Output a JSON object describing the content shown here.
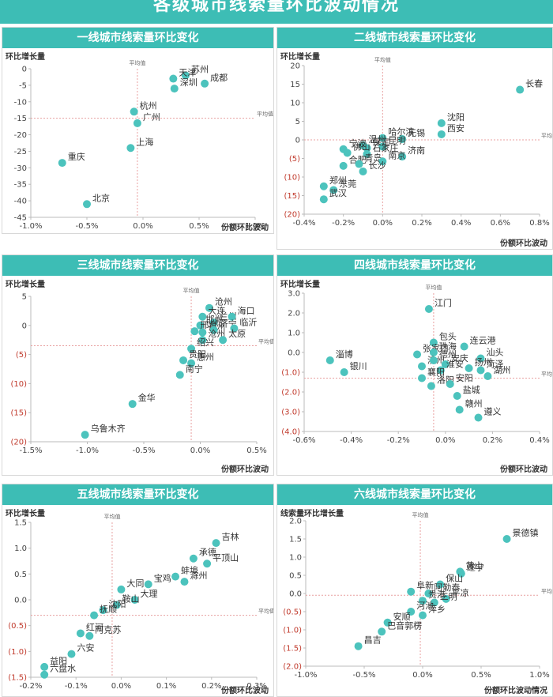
{
  "page": {
    "title": "各级城市线索量环比波动情况"
  },
  "chart_data": [
    {
      "type": "scatter",
      "title": "一线城市线索量环比变化",
      "ylabel": "环比增长量",
      "xlabel": "份额环比波动",
      "xlim": [
        -1.0,
        1.0
      ],
      "ylim": [
        -45,
        0
      ],
      "xticks": [
        "-1.0%",
        "-0.5%",
        "0.0%",
        "0.5%",
        "1.0%"
      ],
      "xtick_values": [
        -1.0,
        -0.5,
        0,
        0.5,
        1.0
      ],
      "yticks": [
        "0",
        "-5",
        "-10",
        "-15",
        "-20",
        "-25",
        "-30",
        "-35",
        "-40",
        "-45"
      ],
      "ytick_values": [
        0,
        -5,
        -10,
        -15,
        -20,
        -25,
        -30,
        -35,
        -40,
        -45
      ],
      "avg_label": "平均值",
      "avg_x": -0.05,
      "avg_y": -15,
      "points": [
        {
          "label": "苏州",
          "x": 0.38,
          "y": -2
        },
        {
          "label": "天津",
          "x": 0.27,
          "y": -3
        },
        {
          "label": "深圳",
          "x": 0.28,
          "y": -6
        },
        {
          "label": "成都",
          "x": 0.55,
          "y": -4.5
        },
        {
          "label": "杭州",
          "x": -0.08,
          "y": -13
        },
        {
          "label": "广州",
          "x": -0.05,
          "y": -16.5
        },
        {
          "label": "上海",
          "x": -0.11,
          "y": -24
        },
        {
          "label": "重庆",
          "x": -0.72,
          "y": -28.5
        },
        {
          "label": "北京",
          "x": -0.5,
          "y": -41
        }
      ]
    },
    {
      "type": "scatter",
      "title": "二线城市线索量环比变化",
      "ylabel": "环比增长量",
      "xlabel": "份额环比波动",
      "xlim": [
        -0.4,
        0.8
      ],
      "ylim": [
        -20,
        20
      ],
      "xticks": [
        "-0.4%",
        "-0.2%",
        "0.0%",
        "0.2%",
        "0.4%",
        "0.6%",
        "0.8%"
      ],
      "xtick_values": [
        -0.4,
        -0.2,
        0,
        0.2,
        0.4,
        0.6,
        0.8
      ],
      "yticks": [
        "20",
        "15",
        "10",
        "5",
        "0",
        "(5)",
        "(10)",
        "(15)",
        "(20)"
      ],
      "ytick_values": [
        20,
        15,
        10,
        5,
        0,
        -5,
        -10,
        -15,
        -20
      ],
      "avg_label": "平均值",
      "avg_x": 0.0,
      "avg_y": 0,
      "points": [
        {
          "label": "长春",
          "x": 0.7,
          "y": 13.5
        },
        {
          "label": "沈阳",
          "x": 0.3,
          "y": 4.5
        },
        {
          "label": "西安",
          "x": 0.3,
          "y": 1.5
        },
        {
          "label": "哈尔滨",
          "x": 0.0,
          "y": 0.5
        },
        {
          "label": "无锡",
          "x": 0.1,
          "y": 0.2
        },
        {
          "label": "昆明",
          "x": 0.0,
          "y": -1.8
        },
        {
          "label": "温州",
          "x": -0.1,
          "y": -1.5
        },
        {
          "label": "保定",
          "x": -0.08,
          "y": -2.2
        },
        {
          "label": "石家庄",
          "x": -0.08,
          "y": -3.8
        },
        {
          "label": "济南",
          "x": 0.1,
          "y": -4.5
        },
        {
          "label": "宁波",
          "x": -0.2,
          "y": -2.5
        },
        {
          "label": "佛山",
          "x": -0.18,
          "y": -3.5
        },
        {
          "label": "合肥",
          "x": -0.2,
          "y": -7
        },
        {
          "label": "青岛",
          "x": -0.12,
          "y": -6.5
        },
        {
          "label": "南京",
          "x": 0.0,
          "y": -5.8
        },
        {
          "label": "长沙",
          "x": -0.1,
          "y": -8.5
        },
        {
          "label": "郑州",
          "x": -0.3,
          "y": -12.5
        },
        {
          "label": "东莞",
          "x": -0.25,
          "y": -13.5
        },
        {
          "label": "武汉",
          "x": -0.3,
          "y": -16
        }
      ]
    },
    {
      "type": "scatter",
      "title": "三线城市线索量环比变化",
      "ylabel": "环比增长量",
      "xlabel": "份额环比波动",
      "xlim": [
        -1.5,
        0.5
      ],
      "ylim": [
        -20,
        5
      ],
      "xticks": [
        "-1.5%",
        "-1.0%",
        "-0.5%",
        "0.0%",
        "0.5%"
      ],
      "xtick_values": [
        -1.5,
        -1.0,
        -0.5,
        0,
        0.5
      ],
      "yticks": [
        "5",
        "0",
        "(5)",
        "(10)",
        "(15)",
        "(20)"
      ],
      "ytick_values": [
        5,
        0,
        -5,
        -10,
        -15,
        -20
      ],
      "avg_label": "平均值",
      "avg_x": -0.08,
      "avg_y": -3.5,
      "points": [
        {
          "label": "沧州",
          "x": 0.08,
          "y": 3
        },
        {
          "label": "大连",
          "x": 0.02,
          "y": 1.5
        },
        {
          "label": "兰州",
          "x": 0.12,
          "y": 0.5
        },
        {
          "label": "海口",
          "x": 0.28,
          "y": 1.5
        },
        {
          "label": "邯郸",
          "x": 0.0,
          "y": 0
        },
        {
          "label": "邢台",
          "x": -0.05,
          "y": -1
        },
        {
          "label": "福州",
          "x": 0.02,
          "y": -1.2
        },
        {
          "label": "济宁",
          "x": 0.12,
          "y": -0.8
        },
        {
          "label": "临沂",
          "x": 0.3,
          "y": -0.5
        },
        {
          "label": "沧州2",
          "x": 0.02,
          "y": -2.5
        },
        {
          "label": "太原",
          "x": 0.2,
          "y": -2.5
        },
        {
          "label": "绍兴",
          "x": -0.08,
          "y": -4
        },
        {
          "label": "贵阳",
          "x": -0.15,
          "y": -6
        },
        {
          "label": "惠州",
          "x": -0.08,
          "y": -6.5
        },
        {
          "label": "南宁",
          "x": -0.18,
          "y": -8.5
        },
        {
          "label": "金华",
          "x": -0.6,
          "y": -13.5
        },
        {
          "label": "乌鲁木齐",
          "x": -1.02,
          "y": -18.8
        }
      ]
    },
    {
      "type": "scatter",
      "title": "四线城市线索量环比变化",
      "ylabel": "环比增长量",
      "xlabel": "份额环比波动",
      "xlim": [
        -0.6,
        0.4
      ],
      "ylim": [
        -4,
        3
      ],
      "xticks": [
        "-0.6%",
        "-0.4%",
        "-0.2%",
        "0.0%",
        "0.2%",
        "0.4%"
      ],
      "xtick_values": [
        -0.6,
        -0.4,
        -0.2,
        0,
        0.2,
        0.4
      ],
      "yticks": [
        "3.0",
        "2.0",
        "1.0",
        "0.0",
        "(1.0)",
        "(2.0)",
        "(3.0)",
        "(4.0)"
      ],
      "ytick_values": [
        3,
        2,
        1,
        0,
        -1,
        -2,
        -3,
        -4
      ],
      "avg_label": "平均值",
      "avg_x": -0.05,
      "avg_y": -1.3,
      "points": [
        {
          "label": "江门",
          "x": -0.07,
          "y": 2.2
        },
        {
          "label": "包头",
          "x": -0.05,
          "y": 0.5
        },
        {
          "label": "连云港",
          "x": 0.08,
          "y": 0.3
        },
        {
          "label": "张家口",
          "x": -0.12,
          "y": -0.1
        },
        {
          "label": "珠海",
          "x": -0.05,
          "y": 0.0
        },
        {
          "label": "淄博",
          "x": -0.49,
          "y": -0.4
        },
        {
          "label": "银川",
          "x": -0.43,
          "y": -1.0
        },
        {
          "label": "滨州",
          "x": -0.1,
          "y": -0.7
        },
        {
          "label": "德州",
          "x": -0.05,
          "y": -0.4
        },
        {
          "label": "安庆",
          "x": 0.0,
          "y": -0.6
        },
        {
          "label": "汕头",
          "x": 0.15,
          "y": -0.3
        },
        {
          "label": "淮安",
          "x": -0.02,
          "y": -0.9
        },
        {
          "label": "扬州",
          "x": 0.1,
          "y": -0.8
        },
        {
          "label": "菏泽",
          "x": 0.15,
          "y": -0.9
        },
        {
          "label": "湖州",
          "x": 0.18,
          "y": -1.2
        },
        {
          "label": "襄阳",
          "x": -0.1,
          "y": -1.3
        },
        {
          "label": "洛阳",
          "x": -0.06,
          "y": -1.7
        },
        {
          "label": "安阳",
          "x": 0.02,
          "y": -1.6
        },
        {
          "label": "盐城",
          "x": 0.05,
          "y": -2.2
        },
        {
          "label": "赣州",
          "x": 0.06,
          "y": -2.9
        },
        {
          "label": "遵义",
          "x": 0.14,
          "y": -3.3
        }
      ]
    },
    {
      "type": "scatter",
      "title": "五线城市线索量环比变化",
      "ylabel": "环比增长量",
      "xlabel": "份额环比波动",
      "xlim": [
        -0.2,
        0.3
      ],
      "ylim": [
        -1.5,
        1.5
      ],
      "xticks": [
        "-0.2%",
        "-0.1%",
        "0.0%",
        "0.1%",
        "0.2%",
        "0.3%"
      ],
      "xtick_values": [
        -0.2,
        -0.1,
        0,
        0.1,
        0.2,
        0.3
      ],
      "yticks": [
        "1.5",
        "1.0",
        "0.5",
        "0.0",
        "(0.5)",
        "(1.0)",
        "(1.5)"
      ],
      "ytick_values": [
        1.5,
        1.0,
        0.5,
        0,
        -0.5,
        -1.0,
        -1.5
      ],
      "avg_label": "平均值",
      "avg_x": -0.02,
      "avg_y": -0.3,
      "points": [
        {
          "label": "吉林",
          "x": 0.21,
          "y": 1.1
        },
        {
          "label": "承德",
          "x": 0.16,
          "y": 0.8
        },
        {
          "label": "平顶山",
          "x": 0.19,
          "y": 0.7
        },
        {
          "label": "蚌埠",
          "x": 0.12,
          "y": 0.45
        },
        {
          "label": "滁州",
          "x": 0.14,
          "y": 0.35
        },
        {
          "label": "宝鸡",
          "x": 0.06,
          "y": 0.3
        },
        {
          "label": "大同",
          "x": 0.0,
          "y": 0.2
        },
        {
          "label": "大理",
          "x": 0.03,
          "y": 0.0
        },
        {
          "label": "鞍山",
          "x": -0.01,
          "y": -0.1
        },
        {
          "label": "沈阳",
          "x": -0.04,
          "y": -0.2
        },
        {
          "label": "抚顺",
          "x": -0.06,
          "y": -0.3
        },
        {
          "label": "红河",
          "x": -0.09,
          "y": -0.65
        },
        {
          "label": "阿克苏",
          "x": -0.07,
          "y": -0.7
        },
        {
          "label": "六安",
          "x": -0.11,
          "y": -1.05
        },
        {
          "label": "益阳",
          "x": -0.17,
          "y": -1.3
        },
        {
          "label": "六盘水",
          "x": -0.17,
          "y": -1.45
        }
      ]
    },
    {
      "type": "scatter",
      "title": "六线城市线索量环比变化",
      "ylabel": "线索量环比增长量",
      "xlabel": "份额环比波动情况",
      "xlim": [
        -1.0,
        1.0
      ],
      "ylim": [
        -2.0,
        2.0
      ],
      "xticks": [
        "-1.0%",
        "-0.5%",
        "0.0%",
        "0.5%",
        "1.0%"
      ],
      "xtick_values": [
        -1.0,
        -0.5,
        0,
        0.5,
        1.0
      ],
      "yticks": [
        "2.0",
        "1.5",
        "1.0",
        "0.5",
        "0.0",
        "(0.5)",
        "(1.0)",
        "(1.5)",
        "(2.0)"
      ],
      "ytick_values": [
        2.0,
        1.5,
        1.0,
        0.5,
        0,
        -0.5,
        -1.0,
        -1.5,
        -2.0
      ],
      "avg_label": "平均值",
      "avg_x": -0.02,
      "avg_y": -0.05,
      "points": [
        {
          "label": "景德镇",
          "x": 0.72,
          "y": 1.5
        },
        {
          "label": "黄山",
          "x": 0.32,
          "y": 0.6
        },
        {
          "label": "遂宁",
          "x": 0.33,
          "y": 0.55
        },
        {
          "label": "保山",
          "x": 0.15,
          "y": 0.25
        },
        {
          "label": "阜新",
          "x": -0.1,
          "y": 0.05
        },
        {
          "label": "阿勒泰",
          "x": 0.05,
          "y": 0.0
        },
        {
          "label": "平凉",
          "x": 0.2,
          "y": -0.15
        },
        {
          "label": "贵港",
          "x": 0.0,
          "y": -0.2
        },
        {
          "label": "三明",
          "x": 0.1,
          "y": -0.25
        },
        {
          "label": "河池",
          "x": -0.1,
          "y": -0.5
        },
        {
          "label": "萍乡",
          "x": 0.0,
          "y": -0.6
        },
        {
          "label": "安顺",
          "x": -0.3,
          "y": -0.8
        },
        {
          "label": "巴音郭楞",
          "x": -0.35,
          "y": -1.05
        },
        {
          "label": "昌吉",
          "x": -0.55,
          "y": -1.45
        }
      ]
    }
  ]
}
